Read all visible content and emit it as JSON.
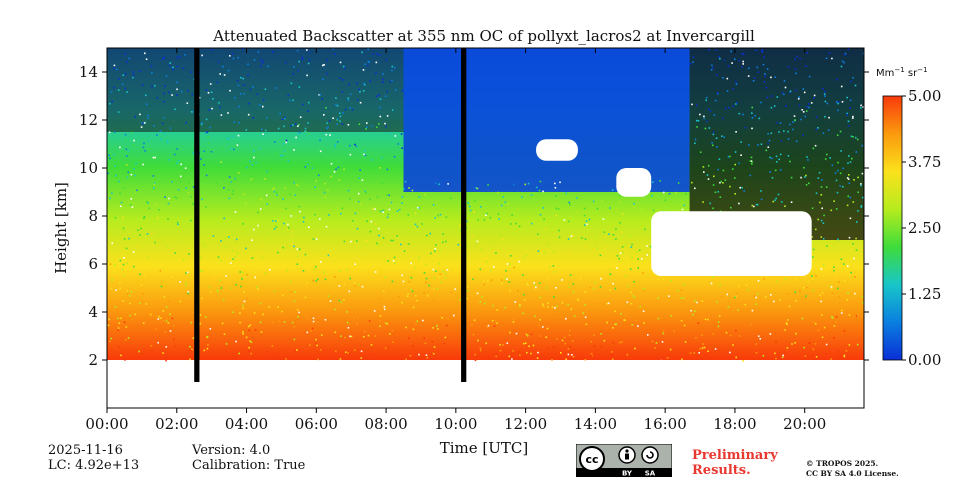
{
  "chart_data": {
    "type": "heatmap",
    "title": "Attenuated Backscatter at 355 nm OC of pollyxt_lacros2 at Invercargill",
    "xlabel": "Time [UTC]",
    "ylabel": "Height [km]",
    "xlim": [
      0,
      21.7
    ],
    "ylim": [
      0,
      15.0
    ],
    "x_ticks": [
      {
        "value": 0,
        "label": "00:00"
      },
      {
        "value": 2,
        "label": "02:00"
      },
      {
        "value": 4,
        "label": "04:00"
      },
      {
        "value": 6,
        "label": "06:00"
      },
      {
        "value": 8,
        "label": "08:00"
      },
      {
        "value": 10,
        "label": "10:00"
      },
      {
        "value": 12,
        "label": "12:00"
      },
      {
        "value": 14,
        "label": "14:00"
      },
      {
        "value": 16,
        "label": "16:00"
      },
      {
        "value": 18,
        "label": "18:00"
      },
      {
        "value": 20,
        "label": "20:00"
      }
    ],
    "y_ticks": [
      {
        "value": 2,
        "label": "2"
      },
      {
        "value": 4,
        "label": "4"
      },
      {
        "value": 6,
        "label": "6"
      },
      {
        "value": 8,
        "label": "8"
      },
      {
        "value": 10,
        "label": "10"
      },
      {
        "value": 12,
        "label": "12"
      },
      {
        "value": 14,
        "label": "14"
      }
    ],
    "colorbar": {
      "unit_main": "Mm",
      "unit_exp1": "−1",
      "unit_mid": " sr",
      "unit_exp2": "−1",
      "range": [
        0.0,
        5.0
      ],
      "ticks": [
        {
          "value": 0.0,
          "label": "0.00"
        },
        {
          "value": 1.25,
          "label": "1.25"
        },
        {
          "value": 2.5,
          "label": "2.50"
        },
        {
          "value": 3.75,
          "label": "3.75"
        },
        {
          "value": 5.0,
          "label": "5.00"
        }
      ],
      "colors": [
        "#0a2fd6",
        "#0a7fe0",
        "#18c6c8",
        "#3fdc3a",
        "#b6ec1e",
        "#fbe11c",
        "#fb9a0e",
        "#f83a0a"
      ]
    },
    "no_data_gaps_utc": [
      [
        2.5,
        2.65
      ],
      [
        10.15,
        10.3
      ]
    ],
    "clouds": [
      {
        "start": 15.6,
        "end": 20.2,
        "base_km": 5.5,
        "top_km": 8.2
      },
      {
        "start": 14.6,
        "end": 15.6,
        "base_km": 8.8,
        "top_km": 10.0
      },
      {
        "start": 12.3,
        "end": 13.5,
        "base_km": 10.3,
        "top_km": 11.2
      }
    ],
    "clear_sky_blue_region": [
      8.5,
      16.7
    ],
    "boundary_layer_top_km": 2.0
  },
  "meta": {
    "date": "2025-11-16",
    "lc": "LC: 4.92e+13",
    "version": "Version: 4.0",
    "calibration": "Calibration: True",
    "preliminary_line1": "Preliminary",
    "preliminary_line2": "Results.",
    "copyright_line1": "© TROPOS 2025.",
    "copyright_line2": "CC BY SA 4.0 License.",
    "cc_label": "cc",
    "by_label": "BY",
    "sa_label": "SA"
  }
}
